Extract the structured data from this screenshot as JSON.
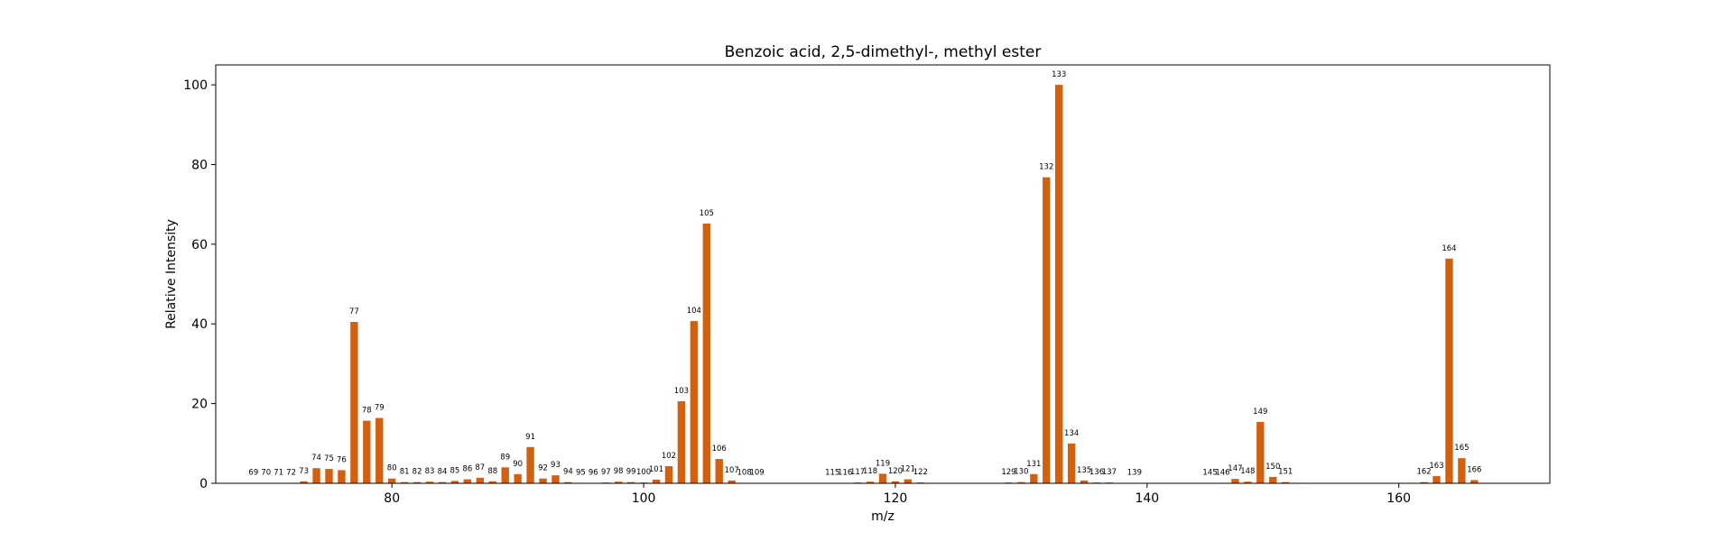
{
  "chart_data": {
    "type": "bar",
    "title": "Benzoic acid, 2,5-dimethyl-, methyl ester",
    "xlabel": "m/z",
    "ylabel": "Relative Intensity",
    "xlim": [
      66,
      172
    ],
    "ylim": [
      0,
      105
    ],
    "xticks": [
      80,
      100,
      120,
      140,
      160
    ],
    "yticks": [
      0,
      20,
      40,
      60,
      80,
      100
    ],
    "bar_color": "#d2600e",
    "grid": false,
    "x": [
      69,
      70,
      71,
      72,
      73,
      74,
      75,
      76,
      77,
      78,
      79,
      80,
      81,
      82,
      83,
      84,
      85,
      86,
      87,
      88,
      89,
      90,
      91,
      92,
      93,
      94,
      95,
      96,
      97,
      98,
      99,
      100,
      101,
      102,
      103,
      104,
      105,
      106,
      107,
      108,
      109,
      115,
      116,
      117,
      118,
      119,
      120,
      121,
      122,
      129,
      130,
      131,
      132,
      133,
      134,
      135,
      136,
      137,
      139,
      145,
      146,
      147,
      148,
      149,
      150,
      151,
      162,
      163,
      164,
      165,
      166
    ],
    "values": [
      0.1,
      0.1,
      0.1,
      0.1,
      0.5,
      3.8,
      3.6,
      3.3,
      40.5,
      15.7,
      16.4,
      1.2,
      0.3,
      0.3,
      0.4,
      0.3,
      0.6,
      1.0,
      1.4,
      0.5,
      4.0,
      2.3,
      9.1,
      1.2,
      2.0,
      0.3,
      0.1,
      0.1,
      0.2,
      0.4,
      0.3,
      0.2,
      0.9,
      4.3,
      20.6,
      40.7,
      65.2,
      6.1,
      0.7,
      0.1,
      0.1,
      0.1,
      0.1,
      0.2,
      0.4,
      2.4,
      0.5,
      1.0,
      0.2,
      0.2,
      0.3,
      2.3,
      76.8,
      100.0,
      10.0,
      0.7,
      0.2,
      0.2,
      0.1,
      0.1,
      0.1,
      1.1,
      0.4,
      15.4,
      1.6,
      0.3,
      0.3,
      1.8,
      56.4,
      6.3,
      0.8
    ]
  }
}
